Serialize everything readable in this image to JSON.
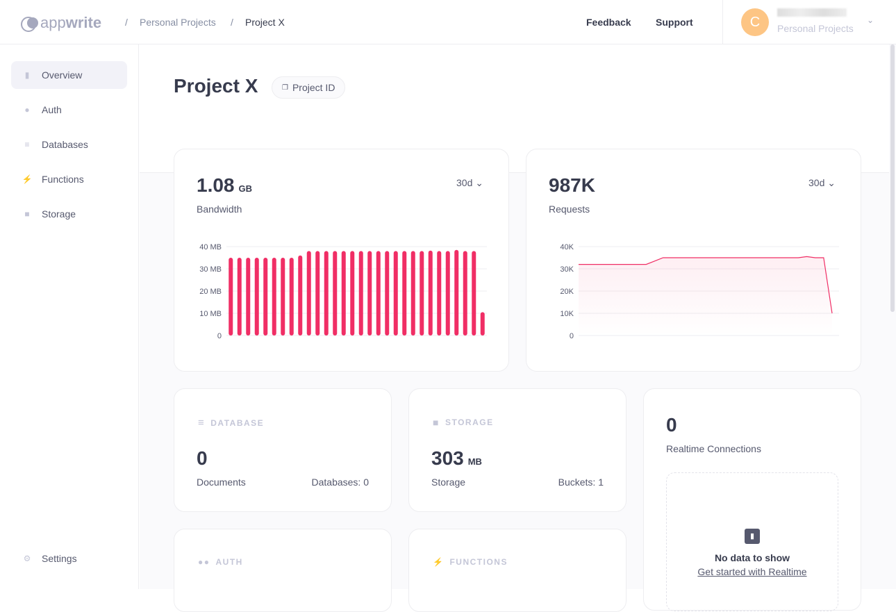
{
  "header": {
    "logo": "appwrite",
    "breadcrumb": [
      "Personal Projects",
      "Project X"
    ],
    "feedback": "Feedback",
    "support": "Support",
    "account": {
      "initial": "C",
      "org": "Personal Projects"
    }
  },
  "sidebar": {
    "items": [
      {
        "label": "Overview",
        "icon": "bar-chart-icon",
        "active": true
      },
      {
        "label": "Auth",
        "icon": "users-icon"
      },
      {
        "label": "Databases",
        "icon": "database-icon"
      },
      {
        "label": "Functions",
        "icon": "lightning-icon"
      },
      {
        "label": "Storage",
        "icon": "folder-icon"
      }
    ],
    "settings": "Settings"
  },
  "page": {
    "title": "Project X",
    "project_id_label": "Project ID"
  },
  "bandwidth": {
    "value": "1.08",
    "unit": "GB",
    "label": "Bandwidth",
    "range": "30d"
  },
  "requests": {
    "value": "987K",
    "label": "Requests",
    "range": "30d"
  },
  "database": {
    "caption": "DATABASE",
    "value": "0",
    "label": "Documents",
    "extra": "Databases: 0"
  },
  "storage": {
    "caption": "STORAGE",
    "value": "303",
    "unit": "MB",
    "label": "Storage",
    "extra": "Buckets: 1"
  },
  "realtime": {
    "value": "0",
    "label": "Realtime Connections",
    "empty_title": "No data to show",
    "empty_link": "Get started with Realtime"
  },
  "auth": {
    "caption": "AUTH"
  },
  "functions": {
    "caption": "FUNCTIONS"
  },
  "colors": {
    "accent": "#f02e65"
  },
  "chart_data": [
    {
      "type": "bar",
      "ylim": [
        0,
        40
      ],
      "yticks": [
        "0",
        "10 MB",
        "20 MB",
        "30 MB",
        "40 MB"
      ],
      "grid": true,
      "values": [
        35,
        35,
        35,
        35,
        35,
        35,
        35,
        35,
        36,
        38,
        38,
        38,
        38,
        38,
        38,
        38,
        38,
        38,
        38,
        38,
        38,
        38,
        38,
        38.2,
        38,
        38,
        38.5,
        38,
        38,
        10.5
      ]
    },
    {
      "type": "area",
      "ylim": [
        0,
        40000
      ],
      "yticks": [
        "0",
        "10K",
        "20K",
        "30K",
        "40K"
      ],
      "grid": true,
      "values": [
        32000,
        32000,
        32000,
        32000,
        32000,
        32000,
        32000,
        32000,
        32000,
        33500,
        35000,
        35000,
        35000,
        35000,
        35000,
        35000,
        35000,
        35000,
        35000,
        35000,
        35000,
        35000,
        35000,
        35000,
        35000,
        35000,
        35000,
        35500,
        35000,
        35000,
        10000
      ]
    }
  ]
}
